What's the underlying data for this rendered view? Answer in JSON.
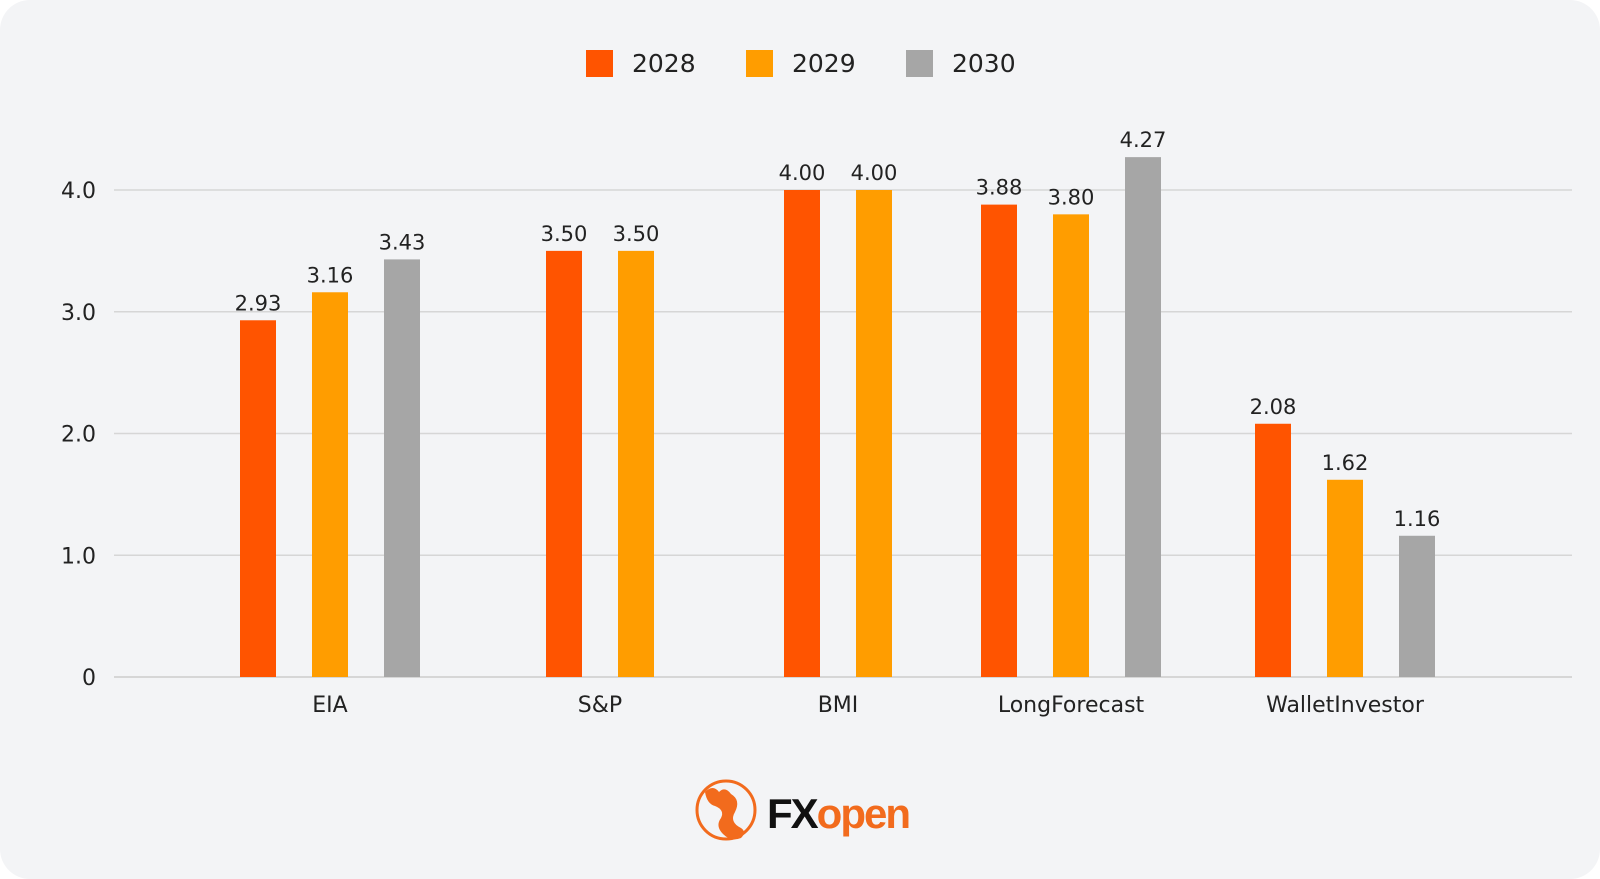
{
  "chart_data": {
    "type": "bar",
    "categories": [
      "EIA",
      "S&P",
      "BMI",
      "LongForecast",
      "WalletInvestor"
    ],
    "series": [
      {
        "name": "2028",
        "color": "#FF5400",
        "values": [
          2.93,
          3.5,
          4.0,
          3.88,
          2.08
        ],
        "labels": [
          "2.93",
          "3.50",
          "4.00",
          "3.88",
          "2.08"
        ]
      },
      {
        "name": "2029",
        "color": "#FF9D00",
        "values": [
          3.16,
          3.5,
          4.0,
          3.8,
          1.62
        ],
        "labels": [
          "3.16",
          "3.50",
          "4.00",
          "3.80",
          "1.62"
        ]
      },
      {
        "name": "2030",
        "color": "#A6A6A6",
        "values": [
          3.43,
          null,
          null,
          4.27,
          1.16
        ],
        "labels": [
          "3.43",
          "",
          "",
          "4.27",
          "1.16"
        ]
      }
    ],
    "yticks": [
      "0",
      "1.0",
      "2.0",
      "3.0",
      "4.0"
    ],
    "ytick_values": [
      0,
      1,
      2,
      3,
      4
    ],
    "ylim": [
      0,
      4.0
    ],
    "grid": true,
    "legend": "top-center",
    "title": "",
    "xlabel": "",
    "ylabel": ""
  },
  "logo": {
    "text_dark": "FX",
    "text_accent": "open",
    "accent_color": "#F26B1D"
  }
}
